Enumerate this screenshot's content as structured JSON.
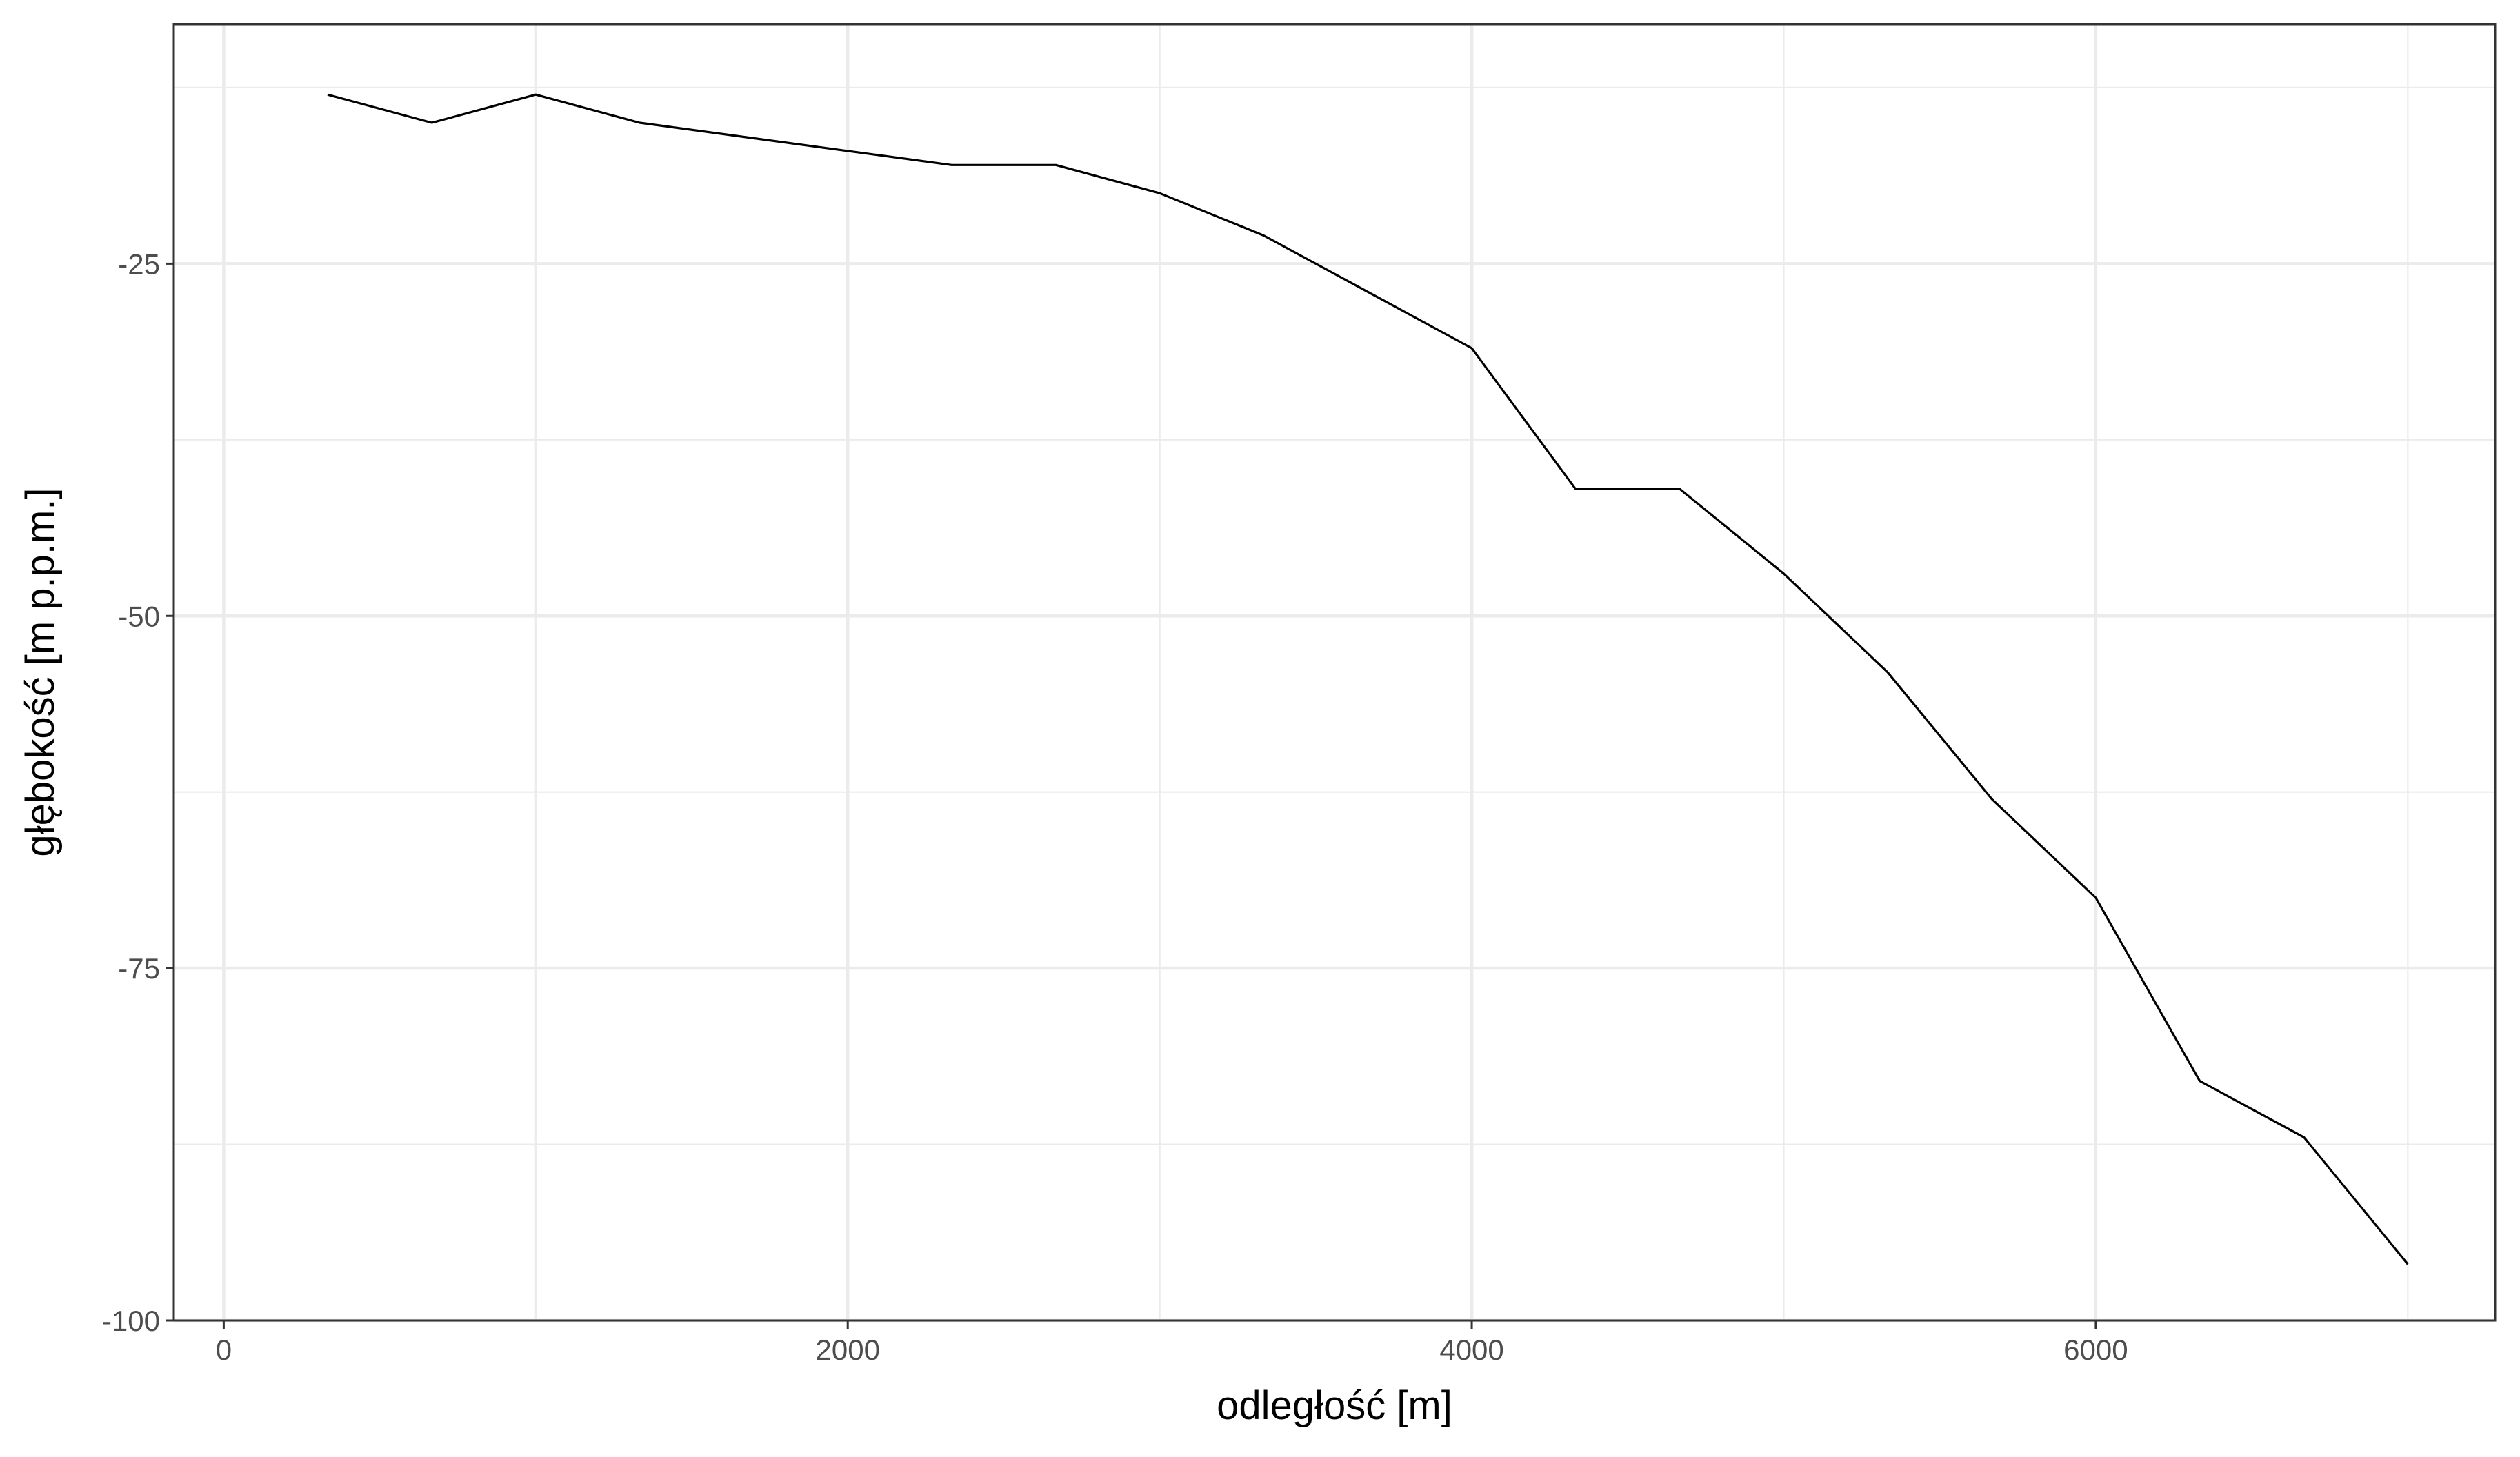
{
  "chart_data": {
    "type": "line",
    "title": "",
    "xlabel": "odległość [m]",
    "ylabel": "głębokość [m p.p.m.]",
    "xlim": [
      -160,
      7280
    ],
    "ylim": [
      -100,
      -8
    ],
    "x_ticks": [
      0,
      2000,
      4000,
      6000
    ],
    "x_tick_labels": [
      "0",
      "2000",
      "4000",
      "6000"
    ],
    "y_ticks": [
      -100,
      -75,
      -50,
      -25
    ],
    "y_tick_labels": [
      "-100",
      "-75",
      "-50",
      "-25"
    ],
    "x_minor": [
      1000,
      3000,
      5000,
      7000
    ],
    "y_minor": [
      -87.5,
      -62.5,
      -37.5,
      -12.5
    ],
    "grid": true,
    "legend": "none",
    "series": [
      {
        "color": "#000000",
        "x": [
          333,
          667,
          1000,
          1333,
          1667,
          2000,
          2333,
          2667,
          3000,
          3333,
          3667,
          4000,
          4333,
          4667,
          5000,
          5333,
          5667,
          6000,
          6333,
          6667,
          7000
        ],
        "y": [
          -13,
          -15,
          -13,
          -15,
          -16,
          -17,
          -18,
          -18,
          -20,
          -23,
          -27,
          -31,
          -41,
          -41,
          -47,
          -54,
          -63,
          -70,
          -83,
          -87,
          -96
        ]
      }
    ]
  }
}
